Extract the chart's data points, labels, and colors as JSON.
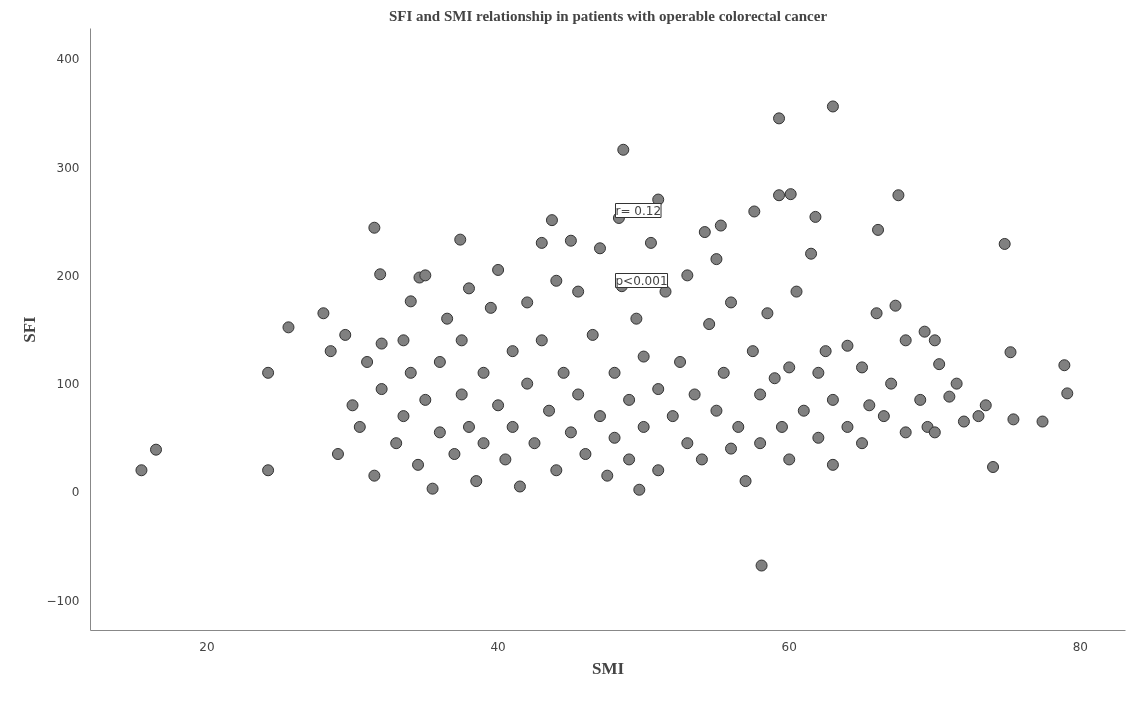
{
  "chart_data": {
    "type": "scatter",
    "title": "SFI and SMI relationship in patients with operable colorectal cancer",
    "xlabel": "SMI",
    "ylabel": "SFI",
    "xlim": [
      12,
      83.1
    ],
    "ylim": [
      -128,
      428
    ],
    "xticks": [
      20,
      40,
      60,
      80
    ],
    "yticks": [
      -100,
      0,
      100,
      200,
      300,
      400
    ],
    "grid": false,
    "marker": "circle",
    "series": [
      {
        "color": "#808080",
        "x": [
          15.5,
          16.5,
          24.2,
          24.2,
          25.6,
          31.5,
          31.9,
          34.6,
          34,
          37.4,
          43.7,
          48.6,
          51,
          59.3,
          63,
          59.3,
          60.1,
          67.5,
          66.1,
          61.8,
          74.8,
          57.6,
          55.3,
          54.2,
          58.1,
          74,
          78.9,
          79.1,
          77.4,
          75.4,
          75.2,
          70.3,
          69.3,
          67.3,
          49.7,
          48.3,
          28,
          28.5,
          29,
          29.5,
          30,
          30.5,
          31,
          31.5,
          32,
          32,
          33,
          33.5,
          33.5,
          34,
          34.5,
          35,
          35,
          35.5,
          36,
          36,
          36.5,
          37,
          37.5,
          37.5,
          38,
          38,
          38.5,
          39,
          39,
          39.5,
          40,
          40,
          40.5,
          41,
          41,
          41.5,
          42,
          42,
          42.5,
          43,
          43,
          43.5,
          44,
          44,
          44.5,
          45,
          45,
          45.5,
          45.5,
          46,
          46.5,
          47,
          47,
          47.5,
          48,
          48,
          48.5,
          49,
          49,
          49.5,
          50,
          50,
          50.5,
          51,
          51,
          51.5,
          52,
          52.5,
          53,
          53,
          53.5,
          54,
          54.5,
          55,
          55,
          55.5,
          56,
          56,
          56.5,
          57,
          57.5,
          58,
          58,
          58.5,
          59,
          59.5,
          60,
          60,
          60.5,
          61,
          61.5,
          62,
          62,
          62.5,
          63,
          63,
          64,
          64,
          65,
          65,
          65.5,
          66,
          66.5,
          67,
          68,
          68,
          69,
          69.5,
          70,
          70,
          71,
          71.5,
          72,
          73,
          73.5
        ],
        "values": [
          20,
          39,
          20,
          110,
          152,
          244,
          201,
          198,
          176,
          233,
          251,
          316,
          270,
          345,
          356,
          274,
          275,
          274,
          242,
          254,
          229,
          259,
          246,
          240,
          -68,
          23,
          117,
          91,
          65,
          67,
          129,
          118,
          148,
          172,
          2,
          253,
          165,
          130,
          35,
          145,
          80,
          60,
          120,
          15,
          95,
          137,
          45,
          140,
          70,
          110,
          25,
          200,
          85,
          3,
          120,
          55,
          160,
          35,
          140,
          90,
          188,
          60,
          10,
          110,
          45,
          170,
          205,
          80,
          30,
          130,
          60,
          5,
          175,
          100,
          45,
          230,
          140,
          75,
          20,
          195,
          110,
          55,
          232,
          185,
          90,
          35,
          145,
          70,
          225,
          15,
          110,
          50,
          190,
          85,
          30,
          160,
          125,
          60,
          230,
          95,
          20,
          185,
          70,
          120,
          45,
          200,
          90,
          30,
          155,
          75,
          215,
          110,
          40,
          175,
          60,
          10,
          130,
          90,
          45,
          165,
          105,
          60,
          115,
          30,
          185,
          75,
          220,
          110,
          50,
          130,
          25,
          85,
          135,
          60,
          115,
          45,
          80,
          165,
          70,
          100,
          55,
          140,
          85,
          60,
          140,
          55,
          88,
          100,
          65,
          70,
          80
        ]
      }
    ],
    "annotations": [
      "r= 0.12",
      "p<0.001"
    ]
  }
}
